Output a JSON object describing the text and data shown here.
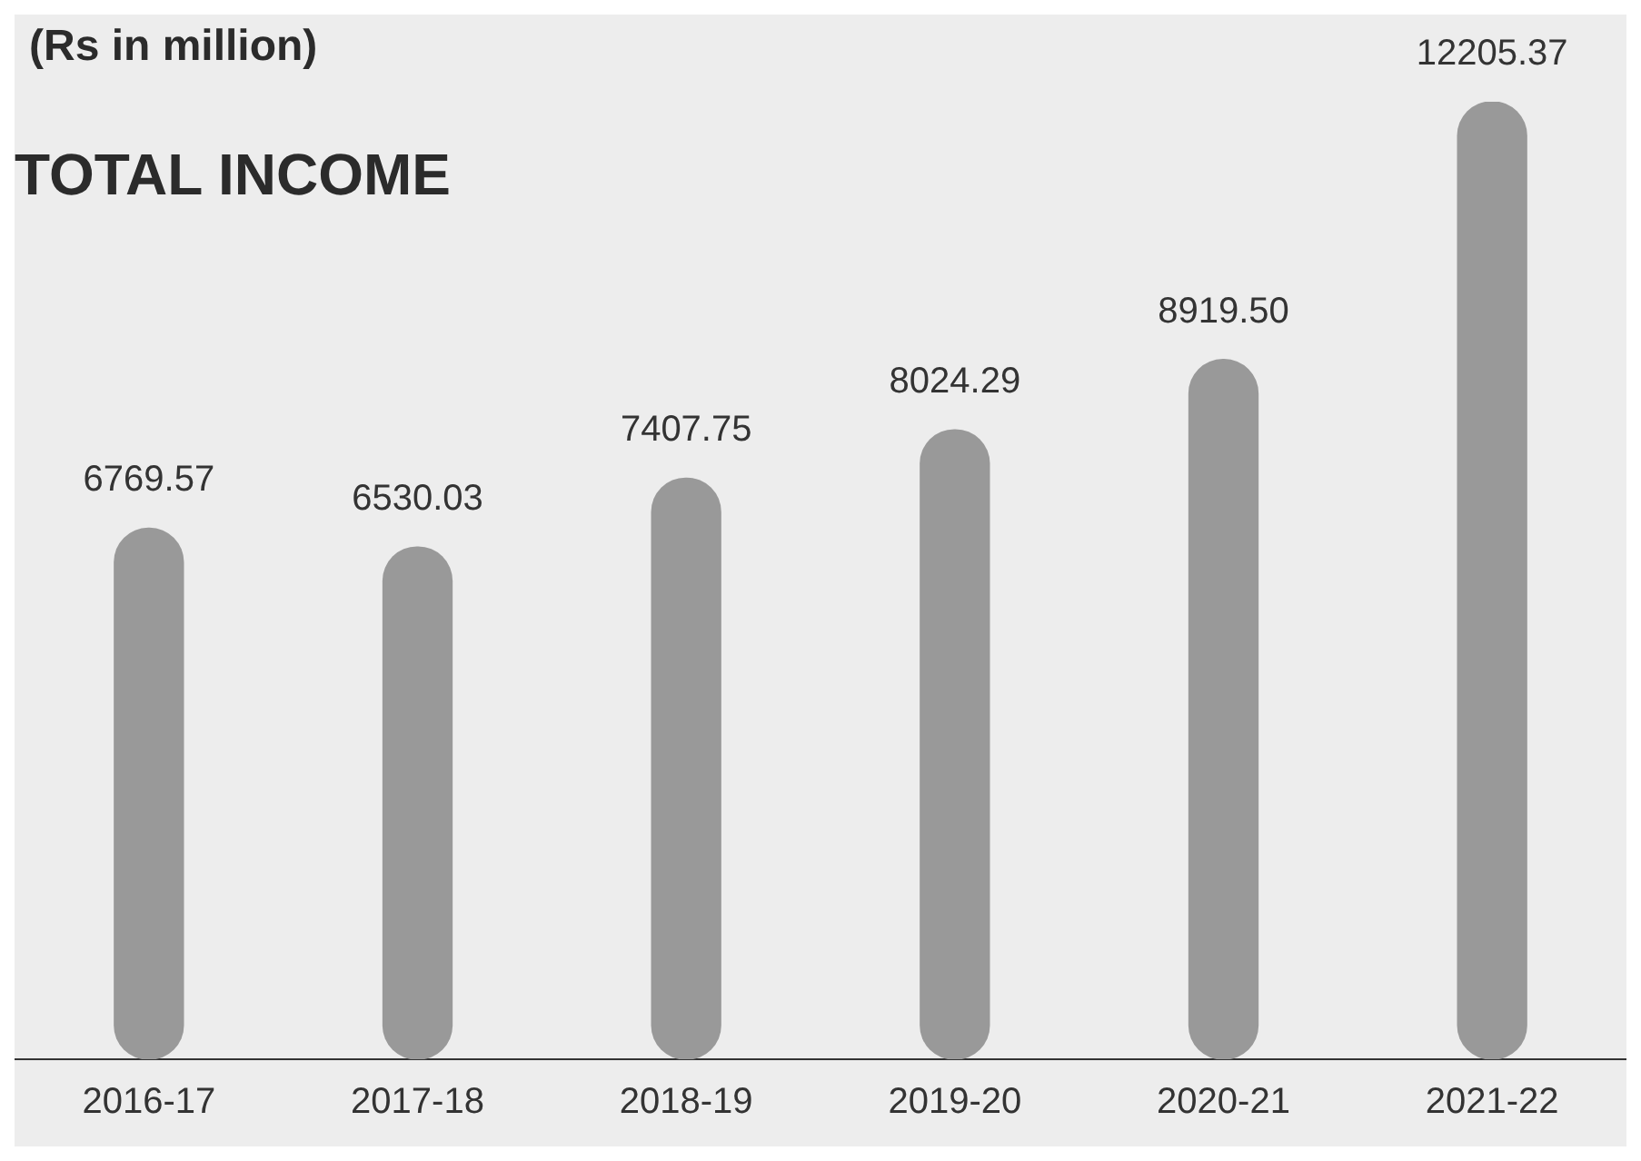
{
  "chart_data": {
    "type": "bar",
    "title": "TOTAL INCOME",
    "subtitle": "(Rs in million)",
    "categories": [
      "2016-17",
      "2017-18",
      "2018-19",
      "2019-20",
      "2020-21",
      "2021-22"
    ],
    "values": [
      6769.57,
      6530.03,
      7407.75,
      8024.29,
      8919.5,
      12205.37
    ],
    "value_labels": [
      "6769.57",
      "6530.03",
      "7407.75",
      "8024.29",
      "8919.50",
      "12205.37"
    ],
    "color": "#999999",
    "grid": false,
    "legend": false
  }
}
